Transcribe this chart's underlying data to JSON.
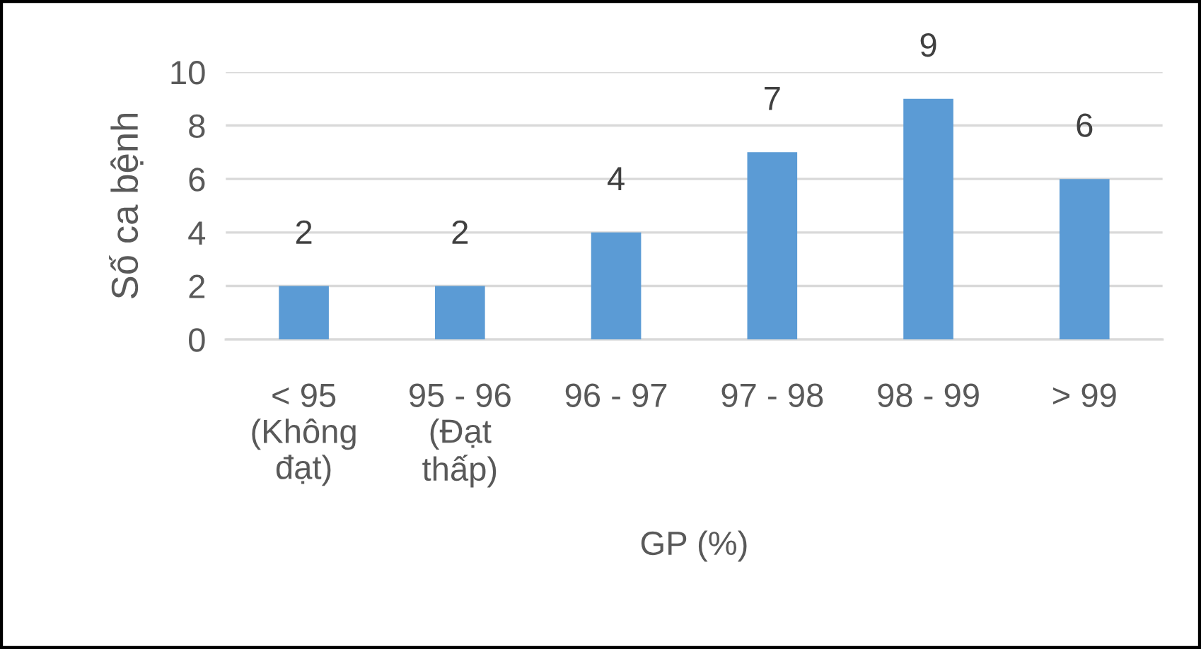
{
  "chart_data": {
    "type": "bar",
    "xlabel": "GP (%)",
    "ylabel": "Số ca bệnh",
    "categories": [
      "< 95\n(Không\nđạt)",
      "95 - 96\n(Đạt\nthấp)",
      "96 - 97",
      "97 - 98",
      "98 - 99",
      "> 99"
    ],
    "values": [
      2,
      2,
      4,
      7,
      9,
      6
    ],
    "color": "#5b9bd5",
    "ylim": [
      0,
      10
    ],
    "yticks": [
      0,
      2,
      4,
      6,
      8,
      10
    ],
    "grid": "y",
    "data_labels": true
  }
}
